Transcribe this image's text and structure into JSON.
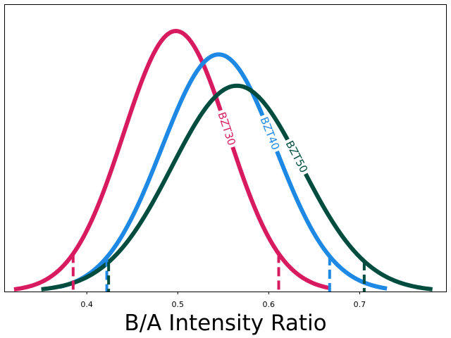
{
  "chart_data": {
    "type": "line",
    "title": "",
    "xlabel": "B/A Intensity Ratio",
    "ylabel": "",
    "xlim": [
      0.31,
      0.795
    ],
    "ylim": [
      0,
      1.1
    ],
    "x_ticks": [
      0.4,
      0.5,
      0.6,
      0.7
    ],
    "x_tick_labels": [
      "0.4",
      "0.5",
      "0.6",
      "0.7"
    ],
    "y_ticks": [],
    "grid": false,
    "legend": "none",
    "series": [
      {
        "name": "BZT30",
        "color": "#D81B60",
        "distribution": "normal",
        "mean": 0.498,
        "sd": 0.0575,
        "peak": 1.0,
        "x_range": [
          0.32,
          0.667
        ],
        "bounds": [
          0.385,
          0.611
        ]
      },
      {
        "name": "BZT40",
        "color": "#1E88E5",
        "distribution": "normal",
        "mean": 0.545,
        "sd": 0.0625,
        "peak": 0.91,
        "x_range": [
          0.37,
          0.73
        ],
        "bounds": [
          0.422,
          0.667
        ]
      },
      {
        "name": "BZT50",
        "color": "#004D40",
        "distribution": "normal",
        "mean": 0.565,
        "sd": 0.0715,
        "peak": 0.79,
        "x_range": [
          0.35,
          0.78
        ],
        "bounds": [
          0.424,
          0.705
        ]
      }
    ]
  }
}
